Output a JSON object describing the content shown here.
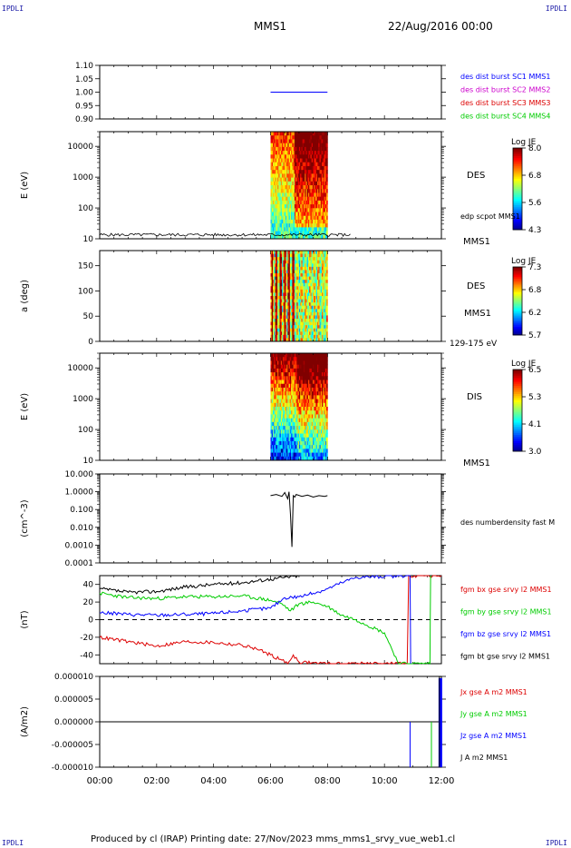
{
  "corner_label": "IPDLI",
  "header": {
    "spacecraft": "MMS1",
    "datetime": "22/Aug/2016 00:00"
  },
  "footer": {
    "text": "Produced by cl (IRAP)   Printing date: 27/Nov/2023   mms_mms1_srvy_vue_web1.cl"
  },
  "colors": {
    "blue": "#0000ff",
    "magenta": "#cc00cc",
    "red": "#dd0000",
    "green": "#00cc00",
    "black": "#000000"
  },
  "chart_data": [
    {
      "type": "line",
      "id": "panel1",
      "yticks": [
        "1.10",
        "1.05",
        "1.00",
        "0.95",
        "0.90"
      ],
      "ylim": [
        0.9,
        1.1
      ],
      "series": [
        {
          "name": "des dist burst SC1 MMS1",
          "x": [
            6.0,
            8.0
          ],
          "values": [
            1.0,
            1.0
          ],
          "color": "#0000ff"
        }
      ],
      "legend": [
        {
          "text": "des dist burst SC1 MMS1",
          "color": "#0000ff"
        },
        {
          "text": "des dist burst SC2 MMS2",
          "color": "#cc00cc"
        },
        {
          "text": "des dist burst SC3 MMS3",
          "color": "#dd0000"
        },
        {
          "text": "des dist burst SC4 MMS4",
          "color": "#00cc00"
        }
      ]
    },
    {
      "type": "heatmap",
      "id": "panel2",
      "ylabel": "E (eV)",
      "yticks": [
        "10000",
        "1000",
        "100",
        "10"
      ],
      "ylim": [
        10,
        30000
      ],
      "log_y": true,
      "x_range": [
        6.0,
        8.0
      ],
      "instrument": "DES",
      "spacecraft": "MMS1",
      "overlay_label": "edp scpot MMS1",
      "overlay_level_eV": [
        12,
        15
      ],
      "colorbar": {
        "title": "Log JE",
        "max": "8.0",
        "mid1": "6.8",
        "mid2": "5.6",
        "min": "4.3"
      }
    },
    {
      "type": "heatmap",
      "id": "panel3",
      "ylabel": "a (deg)",
      "yticks": [
        "150",
        "100",
        "50",
        "0"
      ],
      "ylim": [
        0,
        180
      ],
      "x_range": [
        6.0,
        8.0
      ],
      "instrument": "DES",
      "spacecraft": "MMS1",
      "energy_range": "129-175 eV",
      "colorbar": {
        "title": "Log JE",
        "max": "7.3",
        "mid1": "6.8",
        "mid2": "6.2",
        "min": "5.7"
      }
    },
    {
      "type": "heatmap",
      "id": "panel4",
      "ylabel": "E (eV)",
      "yticks": [
        "10000",
        "1000",
        "100",
        "10"
      ],
      "ylim": [
        10,
        30000
      ],
      "log_y": true,
      "x_range": [
        6.0,
        8.0
      ],
      "instrument": "DIS",
      "spacecraft": "MMS1",
      "colorbar": {
        "title": "Log JE",
        "max": "6.5",
        "mid1": "5.3",
        "mid2": "4.1",
        "min": "3.0"
      }
    },
    {
      "type": "line",
      "id": "panel5",
      "ylabel": "(cm^-3)",
      "yticks": [
        "10.000",
        "1.0000",
        "0.100",
        "0.010",
        "0.0010",
        "0.0001"
      ],
      "ylim": [
        0.0001,
        10
      ],
      "log_y": true,
      "series": [
        {
          "name": "des numberdensity fast M",
          "color": "#000000",
          "x": [
            6.0,
            6.2,
            6.4,
            6.5,
            6.6,
            6.65,
            6.7,
            6.75,
            6.8,
            6.85,
            6.9,
            7.1,
            7.3,
            7.5,
            7.7,
            7.9,
            8.0
          ],
          "values": [
            0.6,
            0.7,
            0.55,
            0.9,
            0.4,
            1.0,
            0.05,
            0.0008,
            0.6,
            0.5,
            0.7,
            0.55,
            0.65,
            0.5,
            0.6,
            0.55,
            0.6
          ]
        }
      ]
    },
    {
      "type": "line",
      "id": "panel6",
      "ylabel": "(nT)",
      "yticks": [
        "40",
        "20",
        "0",
        "-20",
        "-40"
      ],
      "ylim": [
        -50,
        50
      ],
      "zero_line": true,
      "series": [
        {
          "name": "fgm bx gse srvy l2 MMS1",
          "color": "#dd0000",
          "x": [
            0,
            1,
            2,
            3,
            4,
            5,
            5.5,
            6.0,
            6.4,
            6.6,
            6.8,
            7.0,
            7.5,
            8.0,
            10.8,
            10.85,
            12.0
          ],
          "values": [
            -20,
            -25,
            -30,
            -25,
            -26,
            -29,
            -33,
            -40,
            -46,
            -50,
            -40,
            -48,
            -49,
            -50,
            -50,
            50,
            50
          ]
        },
        {
          "name": "fgm by gse srvy l2 MMS1",
          "color": "#00cc00",
          "x": [
            0,
            1,
            2,
            3,
            4,
            5,
            6.0,
            6.4,
            6.7,
            7.0,
            7.5,
            8.0,
            8.5,
            9.0,
            10.0,
            10.5,
            11.6,
            11.62
          ],
          "values": [
            30,
            25,
            24,
            26,
            26,
            27,
            22,
            18,
            10,
            18,
            20,
            15,
            5,
            0,
            -15,
            -50,
            -50,
            50
          ]
        },
        {
          "name": "fgm bz gse srvy l2 MMS1",
          "color": "#0000ff",
          "x": [
            0,
            1,
            2,
            3,
            4,
            5,
            6.0,
            6.5,
            7.0,
            7.5,
            8.0,
            8.5,
            9.0,
            10.9,
            10.92
          ],
          "values": [
            8,
            6,
            5,
            6,
            7,
            10,
            13,
            25,
            26,
            30,
            35,
            42,
            48,
            50,
            -50
          ]
        },
        {
          "name": "fgm bt gse srvy l2 MMS1",
          "color": "#000000",
          "x": [
            0,
            1,
            2,
            3,
            4,
            5,
            6.0,
            6.5,
            7.0
          ],
          "values": [
            35,
            31,
            32,
            37,
            40,
            42,
            46,
            48,
            50
          ]
        }
      ]
    },
    {
      "type": "line",
      "id": "panel7",
      "ylabel": "(A/m2)",
      "yticks": [
        "0.000010",
        "0.000005",
        "0.000000",
        "-0.000005",
        "-0.000010"
      ],
      "ylim": [
        -1e-05,
        1e-05
      ],
      "series": [
        {
          "name": "Jx gse A m2 MMS1",
          "color": "#dd0000",
          "x": [
            0,
            10.9
          ],
          "values": [
            0,
            0
          ]
        },
        {
          "name": "Jy gse A m2 MMS1",
          "color": "#00cc00",
          "x": [
            0,
            11.7
          ],
          "values": [
            0,
            0
          ]
        },
        {
          "name": "Jz gse A m2 MMS1",
          "color": "#0000ff",
          "x": [
            0,
            12.0
          ],
          "values": [
            0,
            0
          ]
        },
        {
          "name": "J A m2 MMS1",
          "color": "#000000",
          "x": [
            0,
            12.0
          ],
          "values": [
            0,
            0
          ]
        }
      ],
      "xticks": [
        "00:00",
        "02:00",
        "04:00",
        "06:00",
        "08:00",
        "10:00",
        "12:00"
      ],
      "xlim": [
        0,
        12
      ]
    }
  ]
}
